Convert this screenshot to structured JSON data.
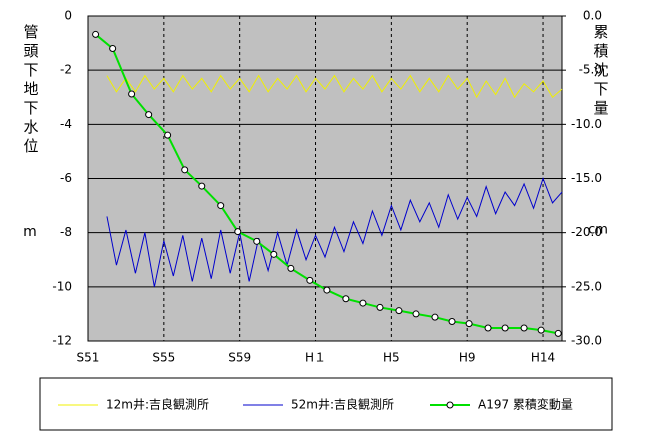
{
  "chart_data": {
    "type": "line",
    "y_axis_label": "管頭下地下水位",
    "y_axis_unit": "m",
    "y2_axis_label": "累積沈下量",
    "y2_axis_unit": "cm",
    "xlim": [
      1976,
      2001
    ],
    "xticks": [
      {
        "value": 1976,
        "label": "S51"
      },
      {
        "value": 1980,
        "label": "S55"
      },
      {
        "value": 1984,
        "label": "S59"
      },
      {
        "value": 1988,
        "label": "H１"
      },
      {
        "value": 1992,
        "label": "H5"
      },
      {
        "value": 1996,
        "label": "H9"
      },
      {
        "value": 2000,
        "label": "H14"
      }
    ],
    "ylim": [
      -12,
      0
    ],
    "yticks": [
      0,
      -2,
      -4,
      -6,
      -8,
      -10,
      -12
    ],
    "y2lim": [
      -30,
      0
    ],
    "y2ticks": [
      {
        "value": 0,
        "label": "0.0"
      },
      {
        "value": -5,
        "label": "-5.0"
      },
      {
        "value": -10,
        "label": "-10.0"
      },
      {
        "value": -15,
        "label": "-15.0"
      },
      {
        "value": -20,
        "label": "-20.0"
      },
      {
        "value": -25,
        "label": "-25.0"
      },
      {
        "value": -30,
        "label": "-30.0"
      }
    ],
    "grid": true,
    "legend": "bottom",
    "background": "#c0c0c0",
    "series": [
      {
        "name": "12m井:吉良観測所",
        "color": "#f0f000",
        "axis": "y",
        "x": [
          1977.0,
          1977.5,
          1978.0,
          1978.5,
          1979.0,
          1979.5,
          1980.0,
          1980.5,
          1981.0,
          1981.5,
          1982.0,
          1982.5,
          1983.0,
          1983.5,
          1984.0,
          1984.5,
          1985.0,
          1985.5,
          1986.0,
          1986.5,
          1987.0,
          1987.5,
          1988.0,
          1988.5,
          1989.0,
          1989.5,
          1990.0,
          1990.5,
          1991.0,
          1991.5,
          1992.0,
          1992.5,
          1993.0,
          1993.5,
          1994.0,
          1994.5,
          1995.0,
          1995.5,
          1996.0,
          1996.5,
          1997.0,
          1997.5,
          1998.0,
          1998.5,
          1999.0,
          1999.5,
          2000.0,
          2000.5,
          2001.0
        ],
        "values": [
          -2.2,
          -2.8,
          -2.3,
          -2.8,
          -2.2,
          -2.7,
          -2.3,
          -2.8,
          -2.2,
          -2.7,
          -2.3,
          -2.8,
          -2.2,
          -2.7,
          -2.3,
          -2.8,
          -2.2,
          -2.8,
          -2.3,
          -2.7,
          -2.2,
          -2.8,
          -2.3,
          -2.7,
          -2.2,
          -2.8,
          -2.3,
          -2.7,
          -2.2,
          -2.8,
          -2.3,
          -2.7,
          -2.2,
          -2.8,
          -2.3,
          -2.8,
          -2.2,
          -2.7,
          -2.3,
          -3.0,
          -2.4,
          -2.9,
          -2.3,
          -3.0,
          -2.5,
          -2.8,
          -2.4,
          -3.0,
          -2.7
        ]
      },
      {
        "name": "52m井:吉良観測所",
        "color": "#0000cc",
        "axis": "y",
        "x": [
          1977.0,
          1977.5,
          1978.0,
          1978.5,
          1979.0,
          1979.5,
          1980.0,
          1980.5,
          1981.0,
          1981.5,
          1982.0,
          1982.5,
          1983.0,
          1983.5,
          1984.0,
          1984.5,
          1985.0,
          1985.5,
          1986.0,
          1986.5,
          1987.0,
          1987.5,
          1988.0,
          1988.5,
          1989.0,
          1989.5,
          1990.0,
          1990.5,
          1991.0,
          1991.5,
          1992.0,
          1992.5,
          1993.0,
          1993.5,
          1994.0,
          1994.5,
          1995.0,
          1995.5,
          1996.0,
          1996.5,
          1997.0,
          1997.5,
          1998.0,
          1998.5,
          1999.0,
          1999.5,
          2000.0,
          2000.5,
          2001.0
        ],
        "values": [
          -7.4,
          -9.2,
          -7.9,
          -9.5,
          -8.0,
          -10.0,
          -8.3,
          -9.6,
          -8.1,
          -9.8,
          -8.2,
          -9.7,
          -7.9,
          -9.5,
          -8.0,
          -9.8,
          -8.2,
          -9.4,
          -8.0,
          -9.2,
          -7.9,
          -9.0,
          -8.1,
          -8.9,
          -7.8,
          -8.7,
          -7.6,
          -8.4,
          -7.2,
          -8.1,
          -7.0,
          -7.9,
          -6.8,
          -7.6,
          -6.9,
          -7.8,
          -6.6,
          -7.5,
          -6.7,
          -7.4,
          -6.3,
          -7.3,
          -6.5,
          -7.0,
          -6.2,
          -7.1,
          -6.0,
          -6.9,
          -6.5
        ]
      },
      {
        "name": "A197 累積変動量",
        "color": "#00e000",
        "axis": "y2",
        "marker": "circle",
        "x": [
          1976.4,
          1977.3,
          1978.3,
          1979.2,
          1980.2,
          1981.1,
          1982.0,
          1983.0,
          1983.9,
          1984.9,
          1985.8,
          1986.7,
          1987.7,
          1988.6,
          1989.6,
          1990.5,
          1991.4,
          1992.4,
          1993.3,
          1994.3,
          1995.2,
          1996.1,
          1997.1,
          1998.0,
          1999.0,
          1999.9,
          2000.8
        ],
        "values": [
          -1.7,
          -3.0,
          -7.2,
          -9.1,
          -11.0,
          -14.2,
          -15.7,
          -17.5,
          -19.9,
          -20.8,
          -22.0,
          -23.3,
          -24.4,
          -25.3,
          -26.1,
          -26.5,
          -26.9,
          -27.2,
          -27.5,
          -27.8,
          -28.2,
          -28.4,
          -28.8,
          -28.8,
          -28.8,
          -29.0,
          -29.3
        ]
      }
    ]
  }
}
